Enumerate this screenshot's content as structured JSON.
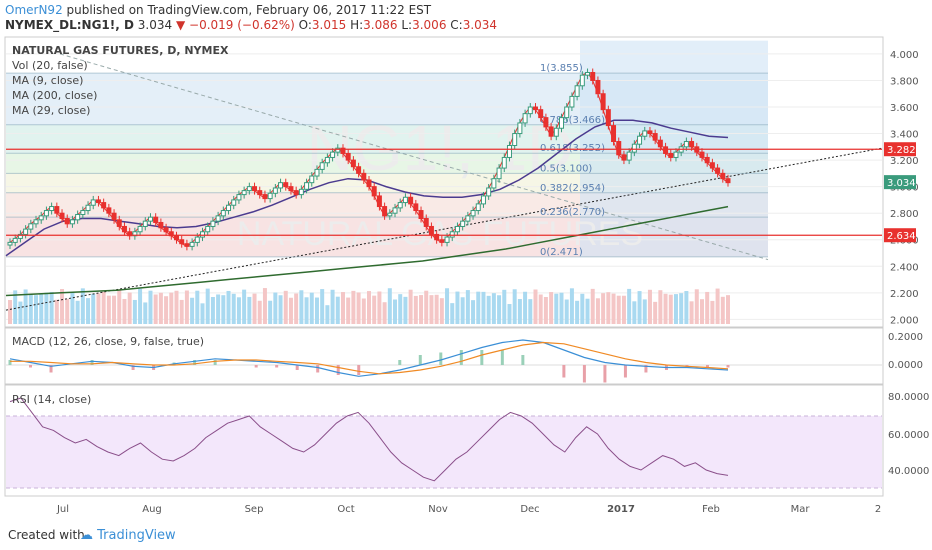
{
  "header": {
    "author": "OmerN92",
    "published": "published on TradingView.com, February 06, 2017 11:22 EST",
    "symbol": "NYMEX_DL:NG1!, D",
    "last": "3.034",
    "change": "−0.019 (−0.62%)",
    "open_label": "O:",
    "open": "3.015",
    "high_label": "H:",
    "high": "3.086",
    "low_label": "L:",
    "low": "3.006",
    "close_label": "C:",
    "close": "3.034"
  },
  "legend": {
    "title": "NATURAL GAS FUTURES, D, NYMEX",
    "items": [
      "Vol (20, false)",
      "MA (9, close)",
      "MA (200, close)",
      "MA (29, close)"
    ]
  },
  "watermark": {
    "ticker": "NG1!, 1D",
    "name": "NATURAL GAS FUTURES"
  },
  "price_axis": {
    "ticks": [
      "4.000",
      "3.800",
      "3.600",
      "3.400",
      "3.200",
      "3.000",
      "2.800",
      "2.600",
      "2.400",
      "2.200",
      "2.000"
    ]
  },
  "price_labels": [
    {
      "text": "3.282",
      "value": 3.282,
      "color": "#e8312e"
    },
    {
      "text": "3.034",
      "value": 3.034,
      "color": "#3a9b7c"
    },
    {
      "text": "2.634",
      "value": 2.634,
      "color": "#e8312e"
    }
  ],
  "fib_levels": [
    {
      "text": "1(3.855)",
      "value": 3.855
    },
    {
      "text": "0.786(3.466)",
      "value": 3.466
    },
    {
      "text": "0.618(3.252)",
      "value": 3.252
    },
    {
      "text": "0.5(3.100)",
      "value": 3.1
    },
    {
      "text": "0.382(2.954)",
      "value": 2.954
    },
    {
      "text": "0.236(2.770)",
      "value": 2.77
    },
    {
      "text": "0(2.471)",
      "value": 2.471
    }
  ],
  "macd": {
    "label": "MACD (12, 26, close, 9, false, true)",
    "ticks": [
      "0.2000",
      "0.0000"
    ]
  },
  "rsi": {
    "label": "RSI (14, close)",
    "ticks": [
      "80.0000",
      "60.0000",
      "40.0000"
    ]
  },
  "time_axis": {
    "labels": [
      "Jul",
      "Aug",
      "Sep",
      "Oct",
      "Nov",
      "Dec",
      "2017",
      "Feb",
      "Mar",
      "2"
    ]
  },
  "footer": {
    "created": "Created with",
    "brand": "TradingView"
  },
  "colors": {
    "up": "#3a9b7c",
    "down": "#e8312e",
    "ma9": "#e8312e",
    "ma29": "#4b3b8f",
    "ma200": "#2f6b2f",
    "macd": "#3b8fd6",
    "signal": "#f08a24",
    "rsi": "#8a4f8a"
  },
  "chart_data": {
    "type": "candlestick",
    "symbol": "NYMEX_DL:NG1!",
    "interval": "D",
    "ylim": [
      1.95,
      4.12
    ],
    "ylabel": "",
    "x_months": [
      "Jul",
      "Aug",
      "Sep",
      "Oct",
      "Nov",
      "Dec",
      "2017",
      "Feb",
      "Mar"
    ],
    "close_series": [
      2.58,
      2.61,
      2.64,
      2.68,
      2.72,
      2.75,
      2.78,
      2.82,
      2.85,
      2.8,
      2.76,
      2.72,
      2.75,
      2.79,
      2.82,
      2.86,
      2.9,
      2.88,
      2.84,
      2.8,
      2.75,
      2.7,
      2.66,
      2.63,
      2.66,
      2.7,
      2.74,
      2.77,
      2.73,
      2.69,
      2.66,
      2.63,
      2.6,
      2.57,
      2.55,
      2.58,
      2.62,
      2.66,
      2.7,
      2.74,
      2.78,
      2.82,
      2.86,
      2.9,
      2.94,
      2.97,
      3.0,
      2.97,
      2.94,
      2.91,
      2.95,
      2.99,
      3.03,
      3.0,
      2.97,
      2.94,
      2.98,
      3.03,
      3.08,
      3.13,
      3.18,
      3.22,
      3.26,
      3.29,
      3.25,
      3.2,
      3.15,
      3.1,
      3.05,
      3.0,
      2.93,
      2.85,
      2.78,
      2.8,
      2.84,
      2.88,
      2.92,
      2.87,
      2.82,
      2.76,
      2.7,
      2.64,
      2.6,
      2.58,
      2.62,
      2.66,
      2.7,
      2.74,
      2.78,
      2.82,
      2.87,
      2.93,
      2.99,
      3.06,
      3.14,
      3.22,
      3.31,
      3.4,
      3.48,
      3.55,
      3.6,
      3.58,
      3.52,
      3.45,
      3.38,
      3.44,
      3.52,
      3.6,
      3.68,
      3.76,
      3.84,
      3.86,
      3.8,
      3.7,
      3.58,
      3.46,
      3.34,
      3.24,
      3.2,
      3.26,
      3.32,
      3.38,
      3.42,
      3.4,
      3.35,
      3.3,
      3.25,
      3.22,
      3.26,
      3.3,
      3.34,
      3.3,
      3.26,
      3.22,
      3.18,
      3.14,
      3.1,
      3.06,
      3.03
    ],
    "ma200_series": [
      2.18,
      2.19,
      2.2,
      2.21,
      2.22,
      2.24,
      2.26,
      2.28,
      2.3,
      2.32,
      2.34,
      2.36,
      2.38,
      2.4,
      2.42,
      2.44,
      2.47,
      2.5,
      2.53,
      2.57,
      2.61,
      2.65,
      2.69,
      2.73,
      2.77,
      2.81,
      2.85
    ],
    "ma29_series": [
      2.48,
      2.58,
      2.68,
      2.74,
      2.76,
      2.76,
      2.74,
      2.72,
      2.7,
      2.69,
      2.7,
      2.73,
      2.77,
      2.81,
      2.86,
      2.92,
      2.98,
      3.03,
      3.06,
      3.05,
      3.0,
      2.96,
      2.93,
      2.92,
      2.92,
      2.94,
      2.98,
      3.05,
      3.14,
      3.25,
      3.36,
      3.45,
      3.5,
      3.5,
      3.48,
      3.44,
      3.41,
      3.38,
      3.37
    ],
    "macd_series": [
      0.05,
      0.02,
      -0.01,
      0.01,
      0.03,
      0.02,
      -0.01,
      -0.02,
      0.01,
      0.03,
      0.05,
      0.04,
      0.03,
      0.02,
      0.0,
      -0.02,
      -0.06,
      -0.09,
      -0.07,
      -0.04,
      0.0,
      0.04,
      0.09,
      0.14,
      0.18,
      0.2,
      0.18,
      0.12,
      0.06,
      0.02,
      0.0,
      -0.01,
      -0.02,
      -0.02,
      -0.03,
      -0.04
    ],
    "signal_series": [
      0.03,
      0.03,
      0.02,
      0.01,
      0.01,
      0.02,
      0.01,
      0.0,
      0.0,
      0.01,
      0.03,
      0.04,
      0.04,
      0.03,
      0.02,
      0.01,
      -0.02,
      -0.05,
      -0.07,
      -0.06,
      -0.04,
      -0.01,
      0.03,
      0.08,
      0.12,
      0.16,
      0.18,
      0.17,
      0.13,
      0.09,
      0.05,
      0.02,
      0.0,
      -0.01,
      -0.02,
      -0.03
    ],
    "rsi_series": [
      78,
      80,
      72,
      64,
      62,
      58,
      55,
      57,
      53,
      50,
      48,
      52,
      55,
      50,
      46,
      45,
      48,
      52,
      58,
      62,
      66,
      68,
      70,
      64,
      60,
      56,
      52,
      50,
      54,
      60,
      66,
      70,
      72,
      66,
      58,
      50,
      44,
      40,
      36,
      34,
      40,
      46,
      50,
      56,
      62,
      68,
      72,
      70,
      66,
      60,
      54,
      50,
      58,
      64,
      60,
      52,
      46,
      42,
      40,
      44,
      48,
      46,
      42,
      44,
      40,
      38,
      37
    ],
    "rsi_band": [
      30,
      70
    ],
    "volume_ylim": [
      0,
      2.5
    ]
  }
}
